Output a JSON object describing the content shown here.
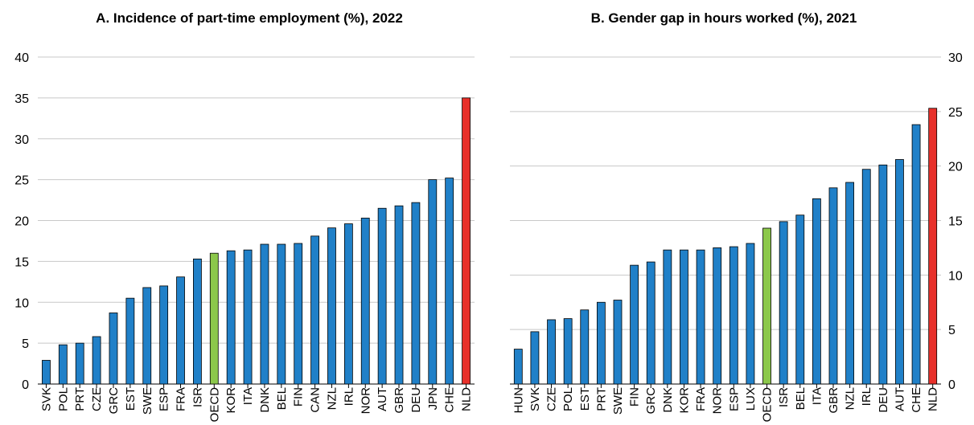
{
  "colors": {
    "default": "#2080c8",
    "oecd": "#8cc84b",
    "nld": "#e8302a"
  },
  "chart_data": [
    {
      "type": "bar",
      "title": "A. Incidence of part-time employment (%), 2022",
      "xlabel": "",
      "ylabel": "",
      "ylim": [
        0,
        40
      ],
      "yticks": [
        0,
        5,
        10,
        15,
        20,
        25,
        30,
        35,
        40
      ],
      "axis_side": "left",
      "grid": true,
      "categories": [
        "SVK",
        "POL",
        "PRT",
        "CZE",
        "GRC",
        "EST",
        "SWE",
        "ESP",
        "FRA",
        "ISR",
        "OECD",
        "KOR",
        "ITA",
        "DNK",
        "BEL",
        "FIN",
        "CAN",
        "NZL",
        "IRL",
        "NOR",
        "AUT",
        "GBR",
        "DEU",
        "JPN",
        "CHE",
        "NLD"
      ],
      "values": [
        2.9,
        4.8,
        5.0,
        5.8,
        8.7,
        10.5,
        11.8,
        12.0,
        13.1,
        15.3,
        16.0,
        16.3,
        16.4,
        17.1,
        17.1,
        17.2,
        18.1,
        19.1,
        19.6,
        20.3,
        21.5,
        21.8,
        22.2,
        25.0,
        25.2,
        35.0
      ],
      "highlight": {
        "OECD": "oecd",
        "NLD": "nld"
      }
    },
    {
      "type": "bar",
      "title": "B. Gender gap in hours worked (%), 2021",
      "xlabel": "",
      "ylabel": "",
      "ylim": [
        0,
        30
      ],
      "yticks": [
        0,
        5,
        10,
        15,
        20,
        25,
        30
      ],
      "axis_side": "right",
      "grid": true,
      "categories": [
        "HUN",
        "SVK",
        "CZE",
        "POL",
        "EST",
        "PRT",
        "SWE",
        "FIN",
        "GRC",
        "DNK",
        "KOR",
        "FRA",
        "NOR",
        "ESP",
        "LUX",
        "OECD",
        "ISR",
        "BEL",
        "ITA",
        "GBR",
        "NZL",
        "IRL",
        "DEU",
        "AUT",
        "CHE",
        "NLD"
      ],
      "values": [
        3.2,
        4.8,
        5.9,
        6.0,
        6.8,
        7.5,
        7.7,
        10.9,
        11.2,
        12.3,
        12.3,
        12.3,
        12.5,
        12.6,
        12.9,
        14.3,
        14.9,
        15.5,
        17.0,
        18.0,
        18.5,
        19.7,
        20.1,
        20.6,
        23.8,
        25.3
      ],
      "highlight": {
        "OECD": "oecd",
        "NLD": "nld"
      }
    }
  ]
}
